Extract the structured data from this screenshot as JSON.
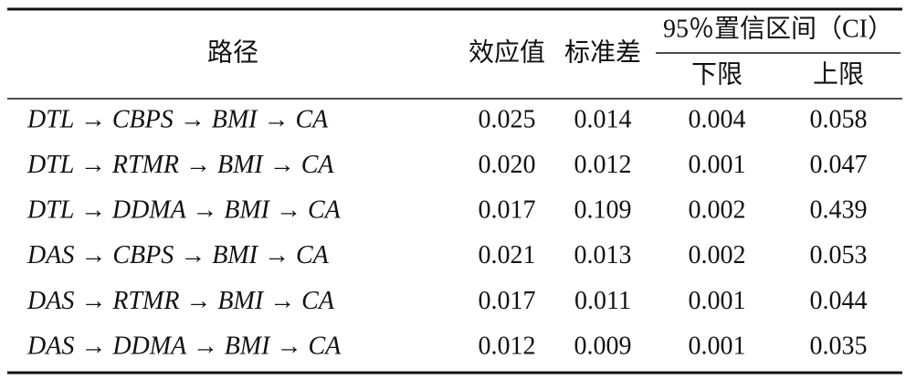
{
  "table": {
    "header": {
      "path": "路径",
      "effect": "效应值",
      "se": "标准差",
      "ci": "95％置信区间（CI）",
      "lower": "下限",
      "upper": "上限"
    },
    "rows": [
      [
        "DTL → CBPS → BMI → CA",
        "0.025",
        "0.014",
        "0.004",
        "0.058"
      ],
      [
        "DTL → RTMR → BMI → CA",
        "0.020",
        "0.012",
        "0.001",
        "0.047"
      ],
      [
        "DTL → DDMA → BMI → CA",
        "0.017",
        "0.109",
        "0.002",
        "0.439"
      ],
      [
        "DAS → CBPS → BMI → CA",
        "0.021",
        "0.013",
        "0.002",
        "0.053"
      ],
      [
        "DAS → RTMR → BMI → CA",
        "0.017",
        "0.011",
        "0.001",
        "0.044"
      ],
      [
        "DAS → DDMA → BMI → CA",
        "0.012",
        "0.009",
        "0.001",
        "0.035"
      ]
    ]
  }
}
